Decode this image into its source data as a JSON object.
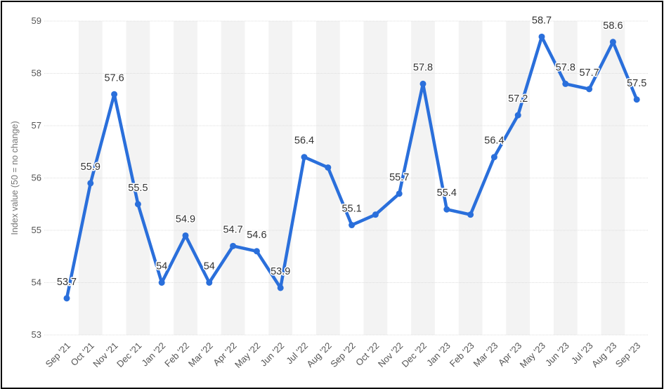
{
  "chart_data": {
    "type": "line",
    "ylabel": "Index value (50 = no change)",
    "xlabel": "",
    "ylim": [
      53,
      59
    ],
    "yticks": [
      53,
      54,
      55,
      56,
      57,
      58,
      59
    ],
    "grid": true,
    "alternate_column_shading": true,
    "categories": [
      "Sep '21",
      "Oct '21",
      "Nov '21",
      "Dec '21",
      "Jan '22",
      "Feb '22",
      "Mar '22",
      "Apr '22",
      "May '22",
      "Jun '22",
      "Jul '22",
      "Aug '22",
      "Sep '22",
      "Oct '22",
      "Nov '22",
      "Dec '22",
      "Jan '23",
      "Feb '23",
      "Mar '23",
      "Apr '23",
      "May '23",
      "Jun '23",
      "Jul '23",
      "Aug '23",
      "Sep '23"
    ],
    "series": [
      {
        "values": [
          53.7,
          55.9,
          57.6,
          55.5,
          54,
          54.9,
          54,
          54.7,
          54.6,
          53.9,
          56.4,
          56.2,
          55.1,
          55.3,
          55.7,
          57.8,
          55.4,
          55.3,
          56.4,
          57.2,
          58.7,
          57.8,
          57.7,
          58.6,
          57.5
        ],
        "data_labels": [
          "53.7",
          "55.9",
          "57.6",
          "55.5",
          "54",
          "54.9",
          "54",
          "54.7",
          "54.6",
          "53.9",
          "56.4",
          "",
          "55.1",
          "",
          "55.7",
          "57.8",
          "55.4",
          "",
          "56.4",
          "57.2",
          "58.7",
          "57.8",
          "57.7",
          "58.6",
          "57.5"
        ]
      }
    ],
    "colors": {
      "line": "#2a6fdb",
      "band": "#f3f3f3",
      "grid": "#dddddd"
    }
  }
}
